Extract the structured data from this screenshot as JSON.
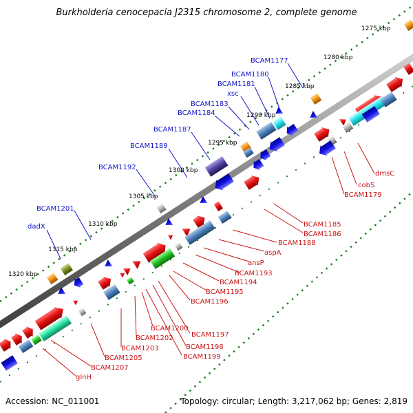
{
  "title": "Burkholderia cenocepacia J2315 chromosome 2, complete genome",
  "footer": {
    "accession": "Accession: NC_011001",
    "summary": "Topology: circular; Length: 3,217,062 bp; Genes: 2,819"
  },
  "colors": {
    "forward_cds": "#e01010",
    "reverse_cds": "#1010e0",
    "backbone": "#909090",
    "tick": "#208020",
    "label_forward": "#1515c8",
    "label_reverse": "#c81414"
  },
  "kbp_labels": [
    "1275 kbp",
    "1280 kbp",
    "1285 kbp",
    "1290 kbp",
    "1295 kbp",
    "1300 kbp",
    "1305 kbp",
    "1310 kbp",
    "1315 kbp",
    "1320 kbp"
  ],
  "upper_labels": [
    "BCAM1177",
    "BCAM1180",
    "BCAM1181",
    "xsc",
    "BCAM1183",
    "BCAM1184",
    "BCAM1187",
    "BCAM1189",
    "BCAM1192",
    "BCAM1201",
    "dadX"
  ],
  "lower_labels": [
    "dmsC",
    "cobS",
    "BCAM1179",
    "BCAM1185",
    "BCAM1186",
    "BCAM1188",
    "aspA",
    "ansP",
    "BCAM1193",
    "BCAM1194",
    "BCAM1195",
    "BCAM1196",
    "BCAM1197",
    "BCAM1198",
    "BCAM1199",
    "BCAM1200",
    "BCAM1202",
    "BCAM1203",
    "BCAM1205",
    "BCAM1207",
    "glnH"
  ]
}
